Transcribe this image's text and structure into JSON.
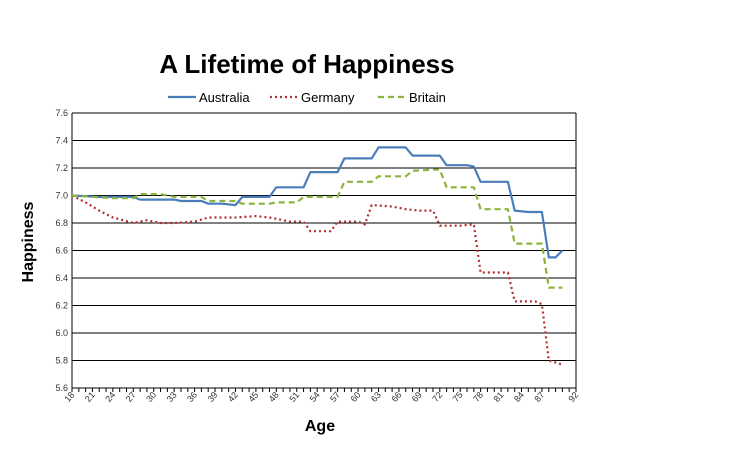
{
  "chart_data": {
    "type": "line",
    "title": "A Lifetime of Happiness",
    "xlabel": "Age",
    "ylabel": "Happiness",
    "ylim": [
      5.6,
      7.6
    ],
    "yticks": [
      "5.6",
      "5.8",
      "6.0",
      "6.2",
      "6.4",
      "6.6",
      "6.8",
      "7.0",
      "7.2",
      "7.4",
      "7.6"
    ],
    "xticks": [
      "18",
      "21",
      "24",
      "27",
      "30",
      "33",
      "36",
      "39",
      "42",
      "45",
      "48",
      "51",
      "54",
      "57",
      "60",
      "63",
      "66",
      "69",
      "72",
      "75",
      "78",
      "81",
      "84",
      "87",
      "92"
    ],
    "grid": "horizontal",
    "legend": "top",
    "series": [
      {
        "name": "Australia",
        "color": "#4a7ebb",
        "dash": "solid",
        "points": [
          [
            18,
            7.0
          ],
          [
            22,
            6.99
          ],
          [
            27,
            6.99
          ],
          [
            28,
            6.97
          ],
          [
            33,
            6.97
          ],
          [
            34,
            6.96
          ],
          [
            37,
            6.96
          ],
          [
            38,
            6.94
          ],
          [
            40,
            6.94
          ],
          [
            42,
            6.93
          ],
          [
            43,
            6.99
          ],
          [
            47,
            6.99
          ],
          [
            48,
            7.06
          ],
          [
            52,
            7.06
          ],
          [
            53,
            7.17
          ],
          [
            57,
            7.17
          ],
          [
            58,
            7.27
          ],
          [
            62,
            7.27
          ],
          [
            63,
            7.35
          ],
          [
            67,
            7.35
          ],
          [
            68,
            7.29
          ],
          [
            72,
            7.29
          ],
          [
            73,
            7.22
          ],
          [
            76,
            7.22
          ],
          [
            77,
            7.21
          ],
          [
            78,
            7.1
          ],
          [
            82,
            7.1
          ],
          [
            83,
            6.89
          ],
          [
            85,
            6.88
          ],
          [
            87,
            6.88
          ],
          [
            88,
            6.55
          ],
          [
            89,
            6.55
          ],
          [
            90,
            6.6
          ]
        ]
      },
      {
        "name": "Germany",
        "color": "#b03030",
        "dash": "dotted",
        "points": [
          [
            18,
            7.0
          ],
          [
            20,
            6.95
          ],
          [
            22,
            6.89
          ],
          [
            24,
            6.84
          ],
          [
            27,
            6.8
          ],
          [
            29,
            6.82
          ],
          [
            31,
            6.8
          ],
          [
            33,
            6.8
          ],
          [
            36,
            6.81
          ],
          [
            38,
            6.84
          ],
          [
            42,
            6.84
          ],
          [
            45,
            6.85
          ],
          [
            47,
            6.84
          ],
          [
            50,
            6.81
          ],
          [
            52,
            6.81
          ],
          [
            53,
            6.74
          ],
          [
            56,
            6.74
          ],
          [
            57,
            6.81
          ],
          [
            60,
            6.81
          ],
          [
            61,
            6.79
          ],
          [
            62,
            6.93
          ],
          [
            65,
            6.92
          ],
          [
            67,
            6.9
          ],
          [
            69,
            6.89
          ],
          [
            71,
            6.89
          ],
          [
            72,
            6.78
          ],
          [
            75,
            6.78
          ],
          [
            77,
            6.79
          ],
          [
            78,
            6.44
          ],
          [
            82,
            6.44
          ],
          [
            83,
            6.23
          ],
          [
            86,
            6.23
          ],
          [
            87,
            6.21
          ],
          [
            88,
            5.8
          ],
          [
            90,
            5.77
          ]
        ]
      },
      {
        "name": "Britain",
        "color": "#8cb43c",
        "dash": "dashed",
        "points": [
          [
            18,
            7.0
          ],
          [
            24,
            6.98
          ],
          [
            27,
            6.98
          ],
          [
            28,
            7.01
          ],
          [
            31,
            7.01
          ],
          [
            33,
            6.99
          ],
          [
            37,
            6.99
          ],
          [
            38,
            6.96
          ],
          [
            42,
            6.96
          ],
          [
            43,
            6.94
          ],
          [
            47,
            6.94
          ],
          [
            48,
            6.95
          ],
          [
            51,
            6.95
          ],
          [
            52,
            6.99
          ],
          [
            57,
            6.99
          ],
          [
            58,
            7.1
          ],
          [
            62,
            7.1
          ],
          [
            63,
            7.14
          ],
          [
            67,
            7.14
          ],
          [
            68,
            7.18
          ],
          [
            72,
            7.19
          ],
          [
            73,
            7.06
          ],
          [
            77,
            7.06
          ],
          [
            78,
            6.9
          ],
          [
            82,
            6.9
          ],
          [
            83,
            6.65
          ],
          [
            86,
            6.65
          ],
          [
            87,
            6.65
          ],
          [
            88,
            6.33
          ],
          [
            90,
            6.33
          ]
        ]
      }
    ]
  }
}
